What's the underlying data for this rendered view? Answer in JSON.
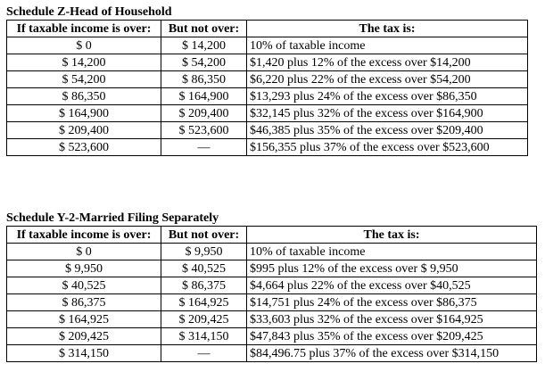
{
  "tables": [
    {
      "title": "Schedule Z-Head of Household",
      "header": [
        "If taxable income is over:",
        "But not over:",
        "The tax is:"
      ],
      "rows": [
        [
          "$ 0",
          "$ 14,200",
          "10% of taxable income"
        ],
        [
          "$ 14,200",
          "$ 54,200",
          "$1,420 plus 12% of the excess over $14,200"
        ],
        [
          "$ 54,200",
          "$ 86,350",
          "$6,220 plus 22% of the excess over $54,200"
        ],
        [
          "$ 86,350",
          "$ 164,900",
          "$13,293 plus 24% of the excess over $86,350"
        ],
        [
          "$ 164,900",
          "$ 209,400",
          "$32,145 plus 32% of the excess over $164,900"
        ],
        [
          "$ 209,400",
          "$ 523,600",
          "$46,385 plus 35% of the excess over $209,400"
        ],
        [
          "$ 523,600",
          "—",
          "$156,355 plus 37% of the excess over $523,600"
        ]
      ]
    },
    {
      "title": "Schedule Y-2-Married Filing Separately",
      "header": [
        "If taxable income is over:",
        "But not over:",
        "The tax is:"
      ],
      "rows": [
        [
          "$ 0",
          "$ 9,950",
          "10% of taxable income"
        ],
        [
          "$ 9,950",
          "$ 40,525",
          "$995 plus 12% of the excess over $ 9,950"
        ],
        [
          "$ 40,525",
          "$ 86,375",
          "$4,664 plus 22% of the excess over $40,525"
        ],
        [
          "$ 86,375",
          "$ 164,925",
          "$14,751 plus 24% of the excess over $86,375"
        ],
        [
          "$ 164,925",
          "$ 209,425",
          "$33,603 plus 32% of the excess over $164,925"
        ],
        [
          "$ 209,425",
          "$ 314,150",
          "$47,843 plus 35% of the excess over $209,425"
        ],
        [
          "$ 314,150",
          "—",
          "$84,496.75 plus 37% of the excess over $314,150"
        ]
      ]
    }
  ]
}
